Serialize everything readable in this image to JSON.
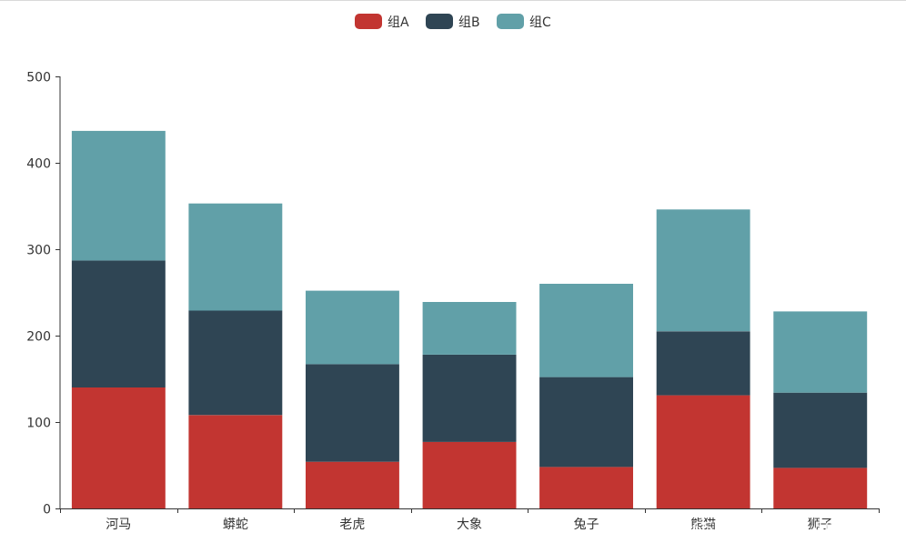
{
  "chart_data": {
    "type": "bar",
    "stacked": true,
    "categories": [
      "河马",
      "蟒蛇",
      "老虎",
      "大象",
      "兔子",
      "熊猫",
      "狮子"
    ],
    "series": [
      {
        "name": "组A",
        "color": "#c23531",
        "values": [
          140,
          108,
          54,
          77,
          48,
          131,
          47
        ]
      },
      {
        "name": "组B",
        "color": "#2f4554",
        "values": [
          147,
          121,
          113,
          101,
          104,
          74,
          87
        ]
      },
      {
        "name": "组C",
        "color": "#61a0a8",
        "values": [
          150,
          124,
          85,
          61,
          108,
          141,
          94
        ]
      }
    ],
    "ylim": [
      0,
      500
    ],
    "yticks": [
      0,
      100,
      200,
      300,
      400,
      500
    ],
    "grid": false,
    "legend_position": "top-center",
    "title": "",
    "xlabel": "",
    "ylabel": ""
  },
  "watermark": "CSDN @weixin_50209097"
}
